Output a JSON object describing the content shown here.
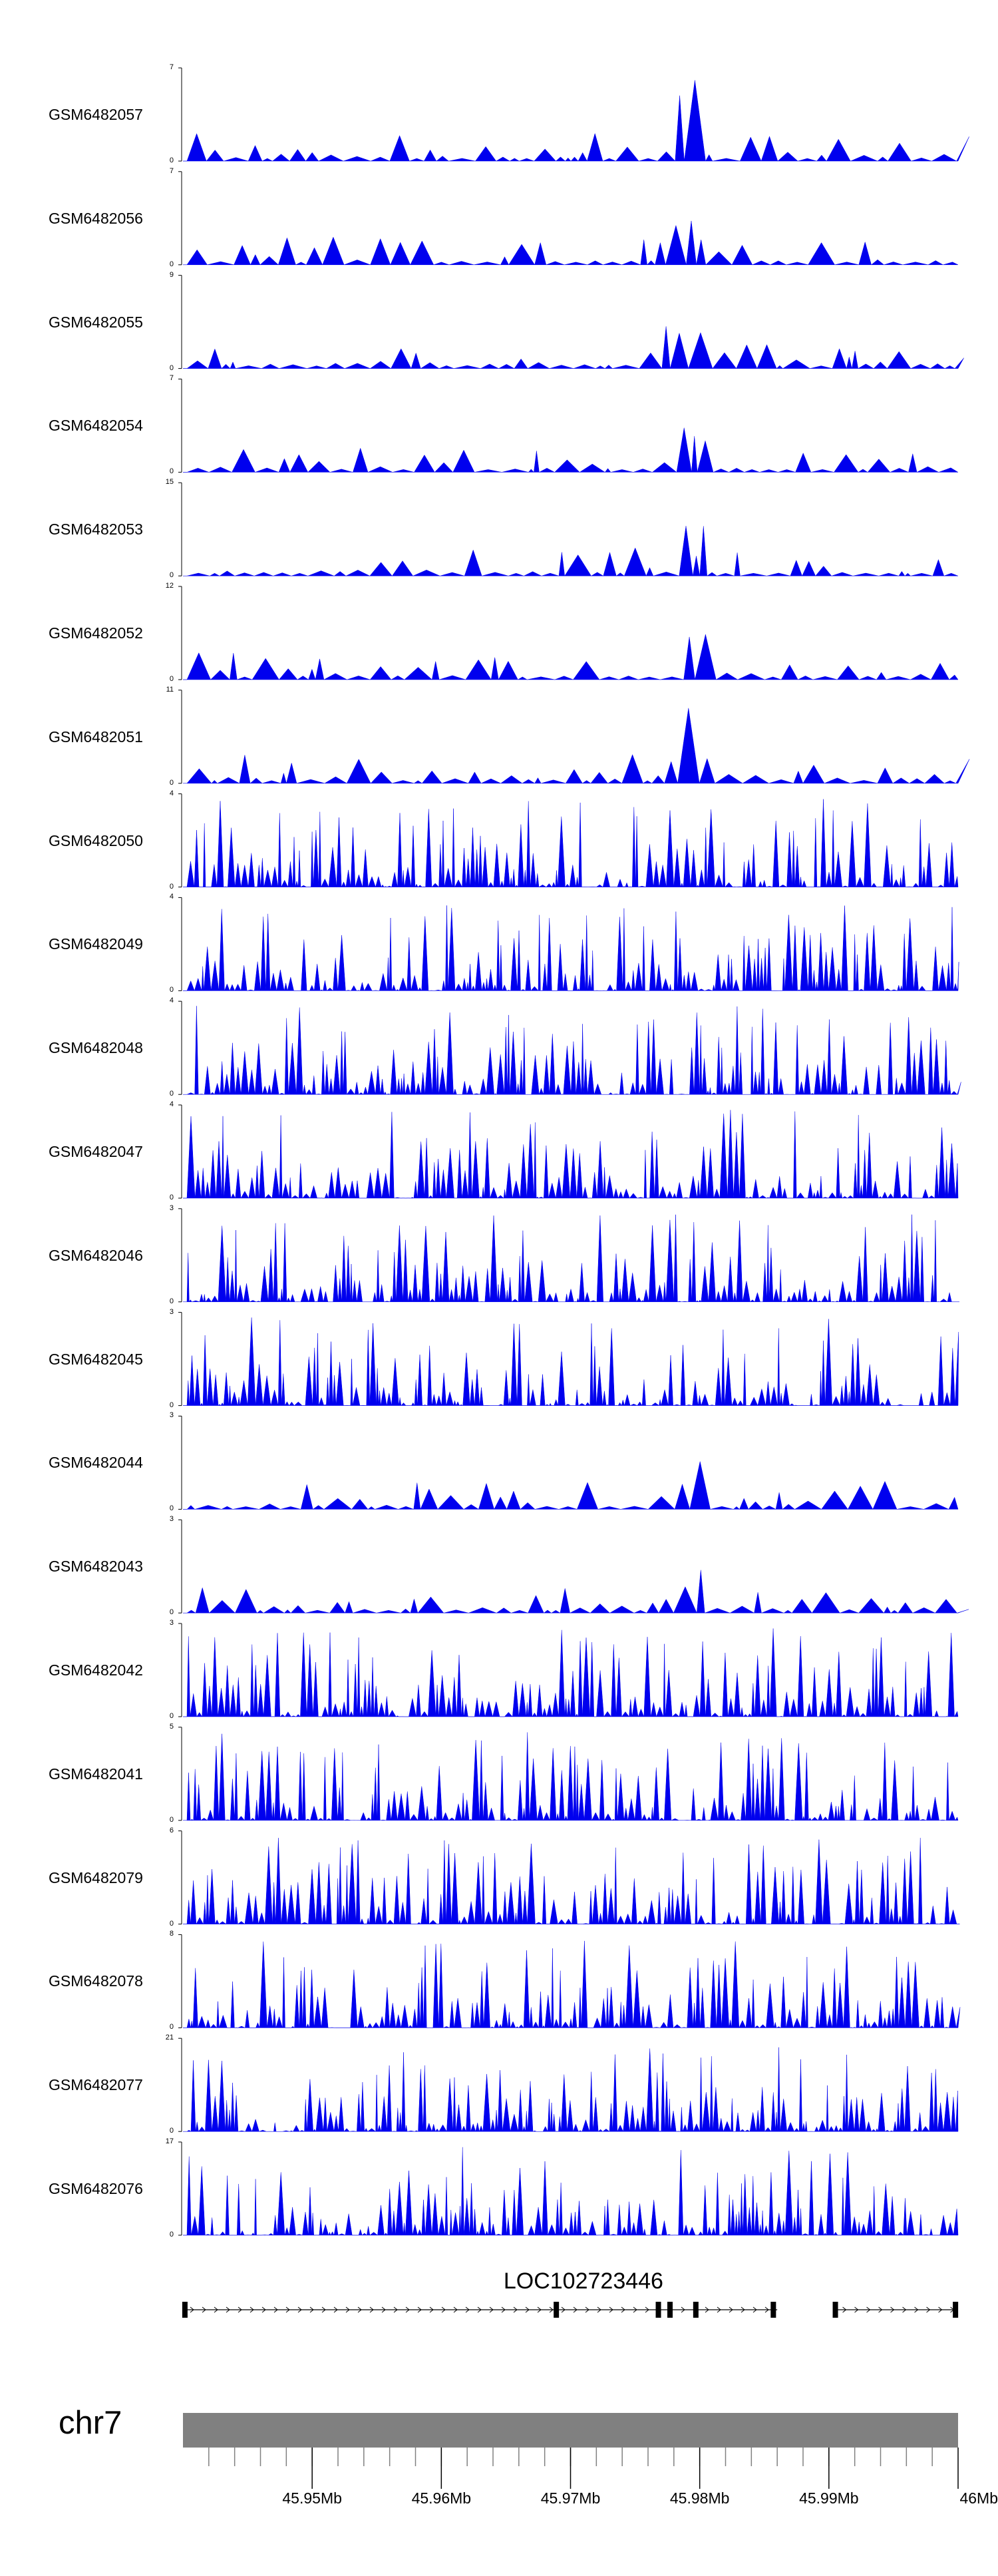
{
  "chart_data": {
    "type": "area",
    "title": "",
    "colors": {
      "signal": "#0000ee",
      "ideogram": "#808080",
      "axis": "#000000",
      "gene": "#000000"
    },
    "x_range_bp": [
      45940000,
      46000000
    ],
    "xaxis": {
      "ticks": [
        {
          "pos": 45950000,
          "label": "45.95Mb"
        },
        {
          "pos": 45960000,
          "label": "45.96Mb"
        },
        {
          "pos": 45970000,
          "label": "45.97Mb"
        },
        {
          "pos": 45980000,
          "label": "45.98Mb"
        },
        {
          "pos": 45990000,
          "label": "45.99Mb"
        },
        {
          "pos": 46000000,
          "label": "46Mb"
        }
      ]
    },
    "tracks": [
      {
        "name": "GSM6482057",
        "ymax": "7",
        "ymin": "0",
        "peak": 0.8
      },
      {
        "name": "GSM6482056",
        "ymax": "7",
        "ymin": "0",
        "peak": 0.8
      },
      {
        "name": "GSM6482055",
        "ymax": "9",
        "ymin": "0",
        "peak": 0.8
      },
      {
        "name": "GSM6482054",
        "ymax": "7",
        "ymin": "0",
        "peak": 0.8
      },
      {
        "name": "GSM6482053",
        "ymax": "15",
        "ymin": "0",
        "peak": 0.8
      },
      {
        "name": "GSM6482052",
        "ymax": "12",
        "ymin": "0",
        "peak": 0.8
      },
      {
        "name": "GSM6482051",
        "ymax": "11",
        "ymin": "0",
        "peak": 0.8
      },
      {
        "name": "GSM6482050",
        "ymax": "4",
        "ymin": "0",
        "peak": null
      },
      {
        "name": "GSM6482049",
        "ymax": "4",
        "ymin": "0",
        "peak": null
      },
      {
        "name": "GSM6482048",
        "ymax": "4",
        "ymin": "0",
        "peak": null
      },
      {
        "name": "GSM6482047",
        "ymax": "4",
        "ymin": "0",
        "peak": null
      },
      {
        "name": "GSM6482046",
        "ymax": "3",
        "ymin": "0",
        "peak": null
      },
      {
        "name": "GSM6482045",
        "ymax": "3",
        "ymin": "0",
        "peak": null
      },
      {
        "name": "GSM6482044",
        "ymax": "3",
        "ymin": "0",
        "peak": 0.8
      },
      {
        "name": "GSM6482043",
        "ymax": "3",
        "ymin": "0",
        "peak": 0.8
      },
      {
        "name": "GSM6482042",
        "ymax": "3",
        "ymin": "0",
        "peak": null
      },
      {
        "name": "GSM6482041",
        "ymax": "5",
        "ymin": "0",
        "peak": null
      },
      {
        "name": "GSM6482079",
        "ymax": "6",
        "ymin": "0",
        "peak": null
      },
      {
        "name": "GSM6482078",
        "ymax": "8",
        "ymin": "0",
        "peak": null
      },
      {
        "name": "GSM6482077",
        "ymax": "21",
        "ymin": "0",
        "peak": null
      },
      {
        "name": "GSM6482076",
        "ymax": "17",
        "ymin": "0",
        "peak": null
      }
    ],
    "gene": {
      "name": "LOC102723446",
      "exons_bp": [
        45940150,
        45968900,
        45976800,
        45977700,
        45979700,
        45985700,
        45999800,
        45990500
      ],
      "transcripts_bp": [
        [
          45940000,
          45986000
        ],
        [
          45990500,
          46000000
        ]
      ]
    },
    "chromosome": "chr7"
  }
}
